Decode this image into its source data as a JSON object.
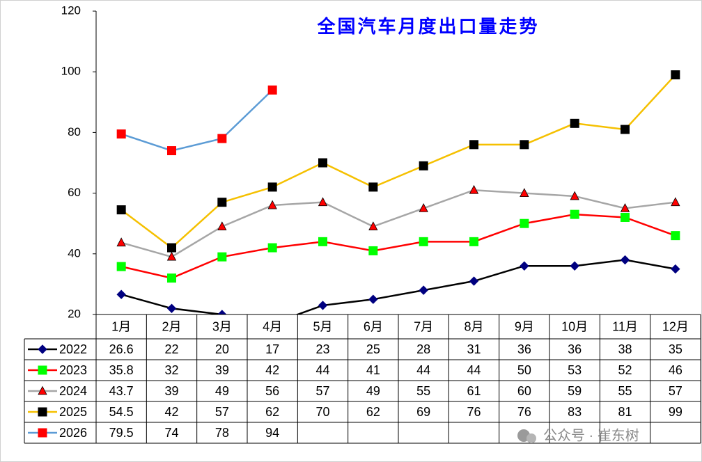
{
  "chart_data": {
    "type": "line",
    "title": "全国汽车月度出口量走势",
    "categories": [
      "1月",
      "2月",
      "3月",
      "4月",
      "5月",
      "6月",
      "7月",
      "8月",
      "9月",
      "10月",
      "11月",
      "12月"
    ],
    "series": [
      {
        "name": "2022",
        "color": "#000000",
        "marker": "diamond",
        "marker_color": "#000080",
        "values": [
          26.6,
          22,
          20,
          17,
          23,
          25,
          28,
          31,
          36,
          36,
          38,
          35
        ]
      },
      {
        "name": "2023",
        "color": "#ff0000",
        "marker": "square",
        "marker_color": "#00ff00",
        "values": [
          35.8,
          32,
          39,
          42,
          44,
          41,
          44,
          44,
          50,
          53,
          52,
          46
        ]
      },
      {
        "name": "2024",
        "color": "#a6a6a6",
        "marker": "triangle",
        "marker_color": "#ff0000",
        "values": [
          43.7,
          39,
          49,
          56,
          57,
          49,
          55,
          61,
          60,
          59,
          55,
          57
        ]
      },
      {
        "name": "2025",
        "color": "#f5c000",
        "marker": "square",
        "marker_color": "#000000",
        "values": [
          54.5,
          42,
          57,
          62,
          70,
          62,
          69,
          76,
          76,
          83,
          81,
          99
        ]
      },
      {
        "name": "2026",
        "color": "#5b9bd5",
        "marker": "square",
        "marker_color": "#ff0000",
        "values": [
          79.5,
          74,
          78,
          94,
          null,
          null,
          null,
          null,
          null,
          null,
          null,
          null
        ]
      }
    ],
    "ylim": [
      20,
      120
    ],
    "yticks": [
      20,
      40,
      60,
      80,
      100,
      120
    ],
    "grid": false,
    "watermark": "公众号 · 崔东树"
  }
}
